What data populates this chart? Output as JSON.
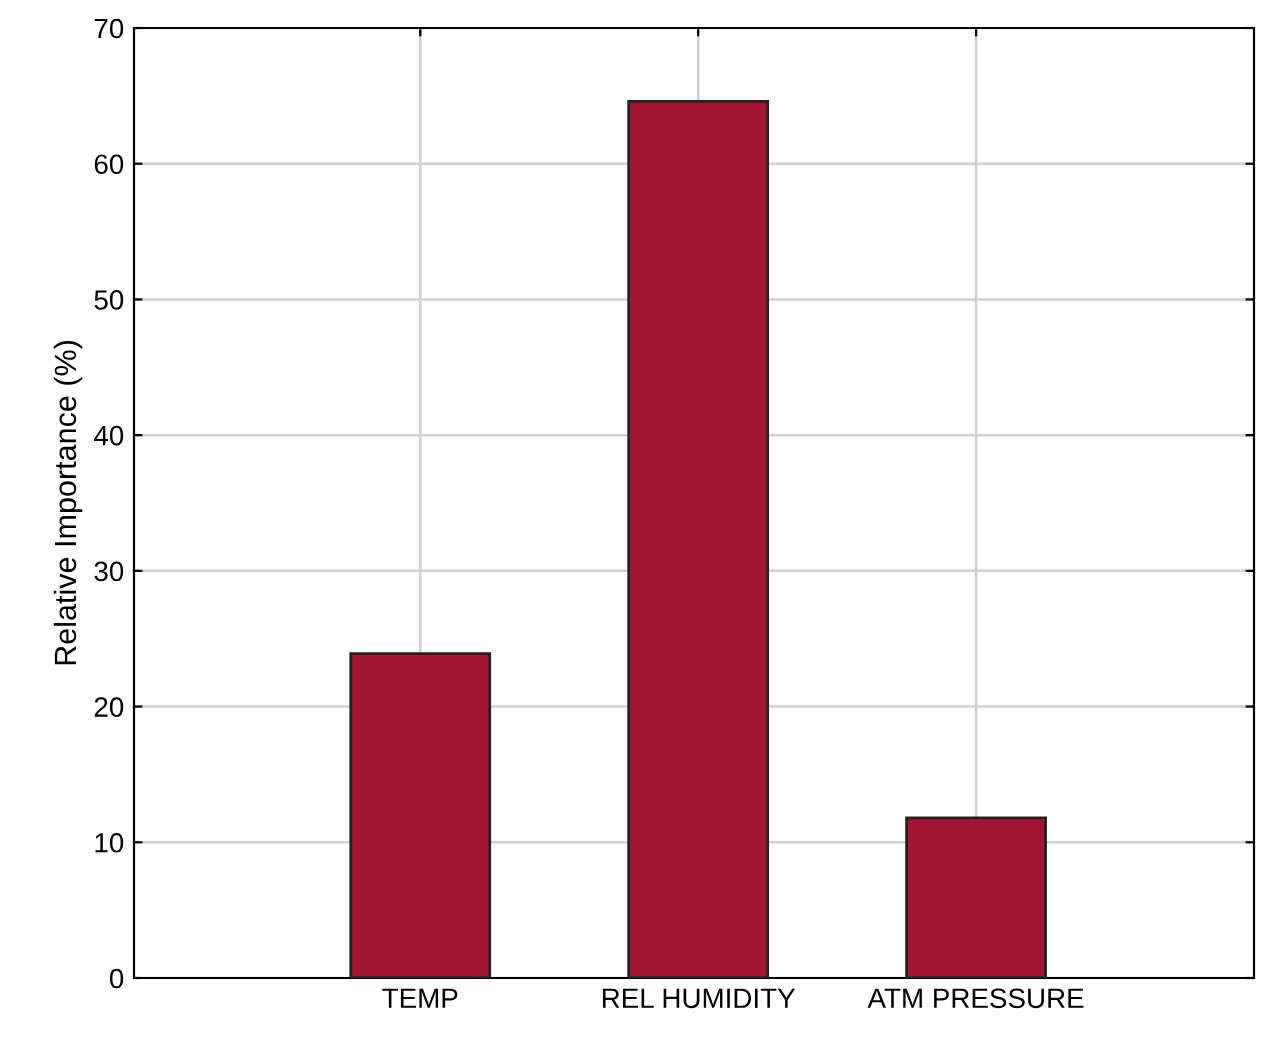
{
  "chart_data": {
    "type": "bar",
    "ylabel": "Relative Importance (%)",
    "categories": [
      "TEMP",
      "REL HUMIDITY",
      "ATM PRESSURE"
    ],
    "values": [
      23.9,
      64.6,
      11.8
    ],
    "color": "#a11530",
    "ylim": [
      0,
      70
    ],
    "yticks": [
      0,
      10,
      20,
      30,
      40,
      50,
      60,
      70
    ],
    "grid": true
  }
}
